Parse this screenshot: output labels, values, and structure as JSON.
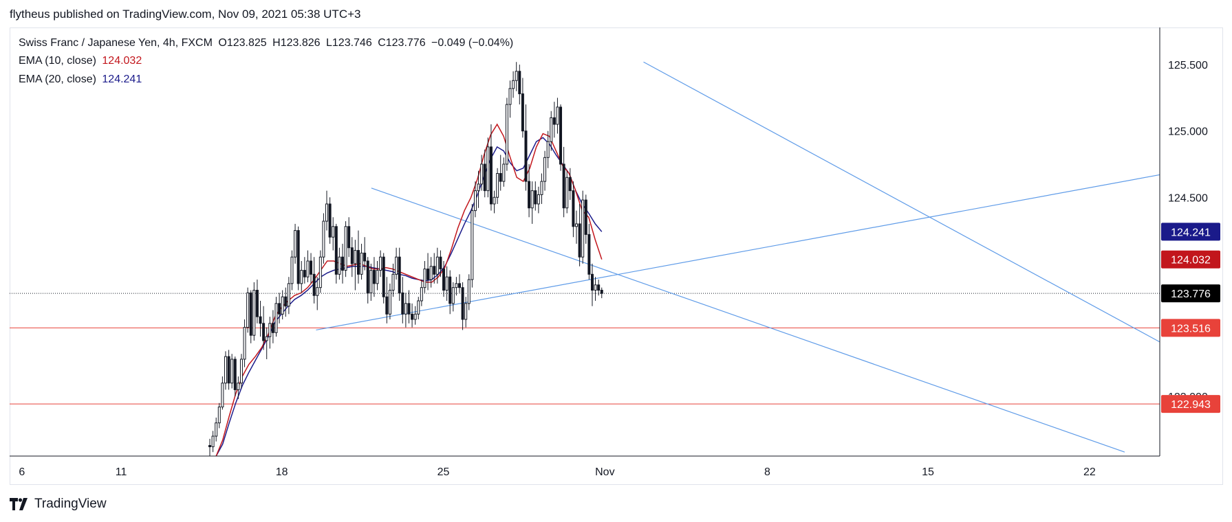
{
  "header": {
    "publisher_text": "flytheus published on TradingView.com, Nov 09, 2021 05:38 UTC+3"
  },
  "legend": {
    "symbol": "Swiss Franc / Japanese Yen, 4h, FXCM",
    "open_label": "O",
    "open": "123.825",
    "high_label": "H",
    "high": "123.826",
    "low_label": "L",
    "low": "123.746",
    "close_label": "C",
    "close": "123.776",
    "change": "−0.049 (−0.04%)",
    "ema10_label": "EMA (10, close)",
    "ema10_value": "124.032",
    "ema20_label": "EMA (20, close)",
    "ema20_value": "124.241"
  },
  "footer": {
    "brand": "TradingView"
  },
  "colors": {
    "ema10": "#c2161c",
    "ema20": "#1a1a8a",
    "trend": "#5e9be8",
    "hline": "#e8423a",
    "candle": "#131722"
  },
  "chart_data": {
    "type": "candlestick",
    "ylim": [
      122.55,
      125.78
    ],
    "y_ticks": [
      "125.500",
      "125.000",
      "124.500",
      "123.000"
    ],
    "x_ticks": [
      "6",
      "11",
      "18",
      "25",
      "Nov",
      "8",
      "15",
      "22"
    ],
    "x_tick_pos": [
      -0.3,
      5.35,
      14.5,
      23.7,
      32.9,
      42.15,
      51.3,
      60.5
    ],
    "xlim": [
      -1,
      64.5
    ],
    "price_labels": [
      {
        "value": 124.241,
        "text": "124.241",
        "color": "#1a1a8a"
      },
      {
        "value": 124.032,
        "text": "124.032",
        "color": "#c2161c"
      },
      {
        "value": 123.776,
        "text": "123.776",
        "color": "#000000"
      },
      {
        "value": 123.516,
        "text": "123.516",
        "color": "#e8423a"
      },
      {
        "value": 122.943,
        "text": "122.943",
        "color": "#e8423a"
      }
    ],
    "horizontal_lines": [
      123.516,
      122.943
    ],
    "last_price_line": 123.776,
    "candles_step": 0.18,
    "candles_start": 10.4,
    "candles": [
      [
        122.63,
        122.68,
        122.55,
        122.62
      ],
      [
        122.62,
        122.74,
        122.58,
        122.7
      ],
      [
        122.7,
        122.84,
        122.66,
        122.8
      ],
      [
        122.8,
        122.95,
        122.76,
        122.92
      ],
      [
        122.92,
        123.15,
        122.9,
        123.1
      ],
      [
        123.1,
        123.34,
        123.05,
        123.3
      ],
      [
        123.3,
        123.35,
        123.05,
        123.1
      ],
      [
        123.1,
        123.32,
        123.06,
        123.28
      ],
      [
        123.28,
        123.3,
        123.0,
        123.05
      ],
      [
        123.05,
        123.15,
        122.98,
        123.1
      ],
      [
        123.1,
        123.32,
        123.06,
        123.28
      ],
      [
        123.28,
        123.58,
        123.22,
        123.52
      ],
      [
        123.52,
        123.82,
        123.48,
        123.78
      ],
      [
        123.78,
        123.8,
        123.4,
        123.46
      ],
      [
        123.46,
        123.86,
        123.42,
        123.8
      ],
      [
        123.8,
        123.88,
        123.55,
        123.6
      ],
      [
        123.6,
        123.72,
        123.45,
        123.55
      ],
      [
        123.55,
        123.68,
        123.35,
        123.42
      ],
      [
        123.42,
        123.52,
        123.28,
        123.45
      ],
      [
        123.45,
        123.6,
        123.36,
        123.55
      ],
      [
        123.55,
        123.65,
        123.4,
        123.48
      ],
      [
        123.48,
        123.75,
        123.45,
        123.7
      ],
      [
        123.7,
        123.78,
        123.55,
        123.62
      ],
      [
        123.62,
        123.8,
        123.58,
        123.75
      ],
      [
        123.75,
        123.82,
        123.6,
        123.68
      ],
      [
        123.68,
        123.9,
        123.62,
        123.85
      ],
      [
        123.85,
        124.1,
        123.8,
        124.05
      ],
      [
        124.05,
        124.3,
        124.0,
        124.25
      ],
      [
        124.25,
        124.28,
        123.8,
        123.85
      ],
      [
        123.85,
        124.02,
        123.78,
        123.95
      ],
      [
        123.95,
        124.05,
        123.85,
        123.9
      ],
      [
        123.9,
        124.1,
        123.86,
        124.02
      ],
      [
        124.02,
        124.08,
        123.85,
        123.92
      ],
      [
        123.92,
        124.05,
        123.7,
        123.76
      ],
      [
        123.76,
        123.9,
        123.65,
        123.82
      ],
      [
        123.82,
        124.1,
        123.78,
        124.05
      ],
      [
        124.05,
        124.38,
        124.0,
        124.32
      ],
      [
        124.32,
        124.55,
        124.25,
        124.45
      ],
      [
        124.45,
        124.5,
        124.15,
        124.2
      ],
      [
        124.2,
        124.35,
        124.1,
        124.28
      ],
      [
        124.28,
        124.3,
        123.85,
        123.92
      ],
      [
        123.92,
        124.12,
        123.88,
        124.05
      ],
      [
        124.05,
        124.15,
        123.85,
        123.95
      ],
      [
        123.95,
        124.32,
        123.9,
        124.28
      ],
      [
        124.28,
        124.35,
        124.05,
        124.12
      ],
      [
        124.12,
        124.2,
        123.9,
        124.0
      ],
      [
        124.0,
        124.18,
        123.8,
        124.1
      ],
      [
        124.1,
        124.25,
        123.85,
        123.92
      ],
      [
        123.92,
        124.15,
        123.88,
        124.08
      ],
      [
        124.08,
        124.2,
        123.95,
        124.02
      ],
      [
        124.02,
        124.05,
        123.7,
        123.78
      ],
      [
        123.78,
        124.0,
        123.72,
        123.95
      ],
      [
        123.95,
        124.05,
        123.75,
        123.85
      ],
      [
        123.85,
        124.02,
        123.8,
        123.95
      ],
      [
        123.95,
        124.1,
        123.9,
        124.05
      ],
      [
        124.05,
        124.08,
        123.7,
        123.75
      ],
      [
        123.75,
        123.9,
        123.55,
        123.62
      ],
      [
        123.62,
        123.85,
        123.58,
        123.8
      ],
      [
        123.8,
        124.0,
        123.75,
        123.92
      ],
      [
        123.92,
        124.12,
        123.88,
        124.05
      ],
      [
        124.05,
        124.12,
        123.72,
        123.78
      ],
      [
        123.78,
        123.9,
        123.55,
        123.62
      ],
      [
        123.62,
        123.78,
        123.52,
        123.7
      ],
      [
        123.7,
        123.8,
        123.55,
        123.62
      ],
      [
        123.62,
        123.7,
        123.52,
        123.58
      ],
      [
        123.58,
        123.68,
        123.54,
        123.62
      ],
      [
        123.62,
        123.75,
        123.58,
        123.72
      ],
      [
        123.72,
        123.88,
        123.68,
        123.82
      ],
      [
        123.82,
        124.02,
        123.78,
        123.96
      ],
      [
        123.96,
        124.08,
        123.8,
        123.88
      ],
      [
        123.88,
        124.05,
        123.82,
        123.98
      ],
      [
        123.98,
        124.08,
        123.85,
        123.92
      ],
      [
        123.92,
        124.12,
        123.85,
        124.05
      ],
      [
        124.05,
        124.1,
        123.9,
        123.96
      ],
      [
        123.96,
        124.02,
        123.75,
        123.8
      ],
      [
        123.8,
        123.98,
        123.72,
        123.9
      ],
      [
        123.9,
        123.95,
        123.62,
        123.7
      ],
      [
        123.7,
        123.86,
        123.64,
        123.82
      ],
      [
        123.82,
        123.9,
        123.76,
        123.85
      ],
      [
        123.85,
        123.92,
        123.78,
        123.82
      ],
      [
        123.82,
        123.86,
        123.5,
        123.58
      ],
      [
        123.58,
        123.75,
        123.52,
        123.7
      ],
      [
        123.7,
        123.92,
        123.65,
        123.88
      ],
      [
        123.88,
        124.45,
        123.82,
        124.4
      ],
      [
        124.4,
        124.62,
        124.35,
        124.55
      ],
      [
        124.55,
        124.7,
        124.42,
        124.6
      ],
      [
        124.6,
        124.82,
        124.55,
        124.75
      ],
      [
        124.75,
        124.86,
        124.5,
        124.55
      ],
      [
        124.55,
        124.95,
        124.5,
        124.88
      ],
      [
        124.88,
        125.05,
        124.4,
        124.45
      ],
      [
        124.45,
        124.55,
        124.38,
        124.5
      ],
      [
        124.5,
        124.72,
        124.45,
        124.68
      ],
      [
        124.68,
        124.82,
        124.55,
        124.62
      ],
      [
        124.62,
        124.8,
        124.58,
        124.75
      ],
      [
        124.75,
        125.25,
        124.7,
        125.2
      ],
      [
        125.2,
        125.38,
        125.1,
        125.32
      ],
      [
        125.32,
        125.45,
        125.25,
        125.38
      ],
      [
        125.38,
        125.52,
        125.3,
        125.45
      ],
      [
        125.45,
        125.5,
        125.2,
        125.28
      ],
      [
        125.28,
        125.4,
        124.95,
        125.0
      ],
      [
        125.0,
        125.2,
        124.55,
        124.62
      ],
      [
        124.62,
        124.75,
        124.35,
        124.42
      ],
      [
        124.42,
        124.62,
        124.3,
        124.55
      ],
      [
        124.55,
        124.62,
        124.4,
        124.45
      ],
      [
        124.45,
        124.58,
        124.38,
        124.52
      ],
      [
        124.52,
        124.68,
        124.45,
        124.62
      ],
      [
        124.62,
        124.85,
        124.55,
        124.8
      ],
      [
        124.8,
        125.0,
        124.72,
        124.92
      ],
      [
        124.92,
        125.15,
        124.85,
        125.1
      ],
      [
        125.1,
        125.22,
        124.95,
        125.05
      ],
      [
        125.05,
        125.25,
        124.98,
        125.18
      ],
      [
        125.18,
        125.2,
        124.7,
        124.75
      ],
      [
        124.75,
        124.88,
        124.35,
        124.42
      ],
      [
        124.42,
        124.7,
        124.38,
        124.65
      ],
      [
        124.65,
        124.72,
        124.48,
        124.55
      ],
      [
        124.55,
        124.62,
        124.2,
        124.28
      ],
      [
        124.28,
        124.4,
        124.15,
        124.3
      ],
      [
        124.3,
        124.45,
        123.98,
        124.05
      ],
      [
        124.05,
        124.55,
        124.0,
        124.48
      ],
      [
        124.48,
        124.52,
        124.15,
        124.22
      ],
      [
        124.22,
        124.3,
        123.88,
        123.92
      ],
      [
        123.92,
        124.0,
        123.68,
        123.8
      ],
      [
        123.8,
        123.9,
        123.72,
        123.84
      ],
      [
        123.84,
        123.88,
        123.76,
        123.8
      ],
      [
        123.8,
        123.82,
        123.74,
        123.776
      ]
    ],
    "ema10": [
      122.55,
      122.67,
      122.85,
      123.02,
      123.15,
      123.24,
      123.3,
      123.37,
      123.47,
      123.6,
      123.67,
      123.72,
      123.76,
      123.78,
      123.82,
      123.88,
      123.95,
      124.02,
      124.02,
      124.0,
      123.98,
      123.99,
      124.0,
      123.98,
      123.96,
      123.96,
      123.97,
      123.96,
      123.94,
      123.92,
      123.9,
      123.88,
      123.86,
      123.86,
      123.9,
      123.97,
      124.11,
      124.27,
      124.4,
      124.5,
      124.64,
      124.82,
      124.97,
      125.05,
      124.96,
      124.8,
      124.65,
      124.62,
      124.72,
      124.88,
      124.98,
      124.96,
      124.85,
      124.74,
      124.68,
      124.55,
      124.4,
      124.35,
      124.18,
      124.032
    ],
    "ema20": [
      122.55,
      122.64,
      122.8,
      122.95,
      123.08,
      123.18,
      123.27,
      123.36,
      123.45,
      123.56,
      123.62,
      123.68,
      123.73,
      123.76,
      123.8,
      123.85,
      123.9,
      123.93,
      123.95,
      123.96,
      123.97,
      123.98,
      123.98,
      123.98,
      123.97,
      123.96,
      123.95,
      123.94,
      123.92,
      123.91,
      123.89,
      123.88,
      123.87,
      123.88,
      123.92,
      123.98,
      124.08,
      124.19,
      124.3,
      124.4,
      124.52,
      124.66,
      124.79,
      124.88,
      124.85,
      124.76,
      124.7,
      124.72,
      124.82,
      124.92,
      124.95,
      124.9,
      124.82,
      124.75,
      124.68,
      124.55,
      124.45,
      124.38,
      124.3,
      124.241
    ],
    "trendlines": [
      {
        "x1": 16.45,
        "y1": 123.5,
        "x2": 64.5,
        "y2": 124.67
      },
      {
        "x1": 19.6,
        "y1": 124.57,
        "x2": 62.5,
        "y2": 122.58
      },
      {
        "x1": 35.1,
        "y1": 125.52,
        "x2": 64.5,
        "y2": 123.41
      }
    ]
  }
}
